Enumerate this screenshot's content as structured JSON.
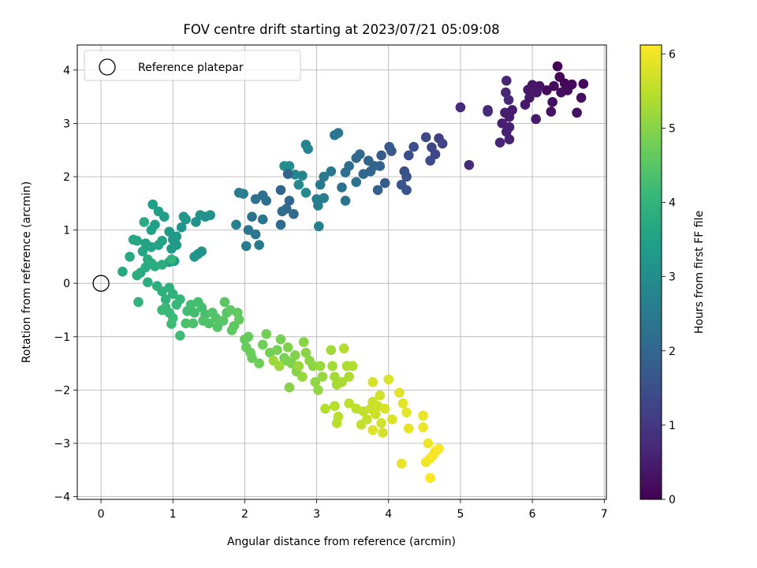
{
  "chart_data": {
    "type": "scatter",
    "title": "FOV centre drift starting at 2023/07/21 05:09:08",
    "xlabel": "Angular distance from reference (arcmin)",
    "ylabel": "Rotation from reference (arcmin)",
    "xlim": [
      -0.33,
      7.03
    ],
    "ylim": [
      -4.05,
      4.47
    ],
    "xticks": [
      0,
      1,
      2,
      3,
      4,
      5,
      6,
      7
    ],
    "yticks": [
      -4,
      -3,
      -2,
      -1,
      0,
      1,
      2,
      3,
      4
    ],
    "grid": true,
    "legend": {
      "placement": "top-left",
      "entries": [
        "Reference platepar"
      ]
    },
    "reference_point": {
      "x": 0,
      "y": 0
    },
    "colorbar": {
      "label": "Hours from first FF file",
      "range": [
        0,
        6.12
      ],
      "ticks": [
        0,
        1,
        2,
        3,
        4,
        5,
        6
      ],
      "colormap": "viridis"
    },
    "points": [
      {
        "x": 6.35,
        "y": 4.07,
        "h": 0.03
      },
      {
        "x": 6.38,
        "y": 3.87,
        "h": 0.06
      },
      {
        "x": 6.45,
        "y": 3.75,
        "h": 0.08
      },
      {
        "x": 6.71,
        "y": 3.74,
        "h": 0.1
      },
      {
        "x": 6.55,
        "y": 3.73,
        "h": 0.12
      },
      {
        "x": 6.3,
        "y": 3.7,
        "h": 0.15
      },
      {
        "x": 6.2,
        "y": 3.62,
        "h": 0.17
      },
      {
        "x": 6.49,
        "y": 3.62,
        "h": 0.19
      },
      {
        "x": 6.4,
        "y": 3.58,
        "h": 0.21
      },
      {
        "x": 6.68,
        "y": 3.48,
        "h": 0.23
      },
      {
        "x": 6.28,
        "y": 3.4,
        "h": 0.25
      },
      {
        "x": 6.62,
        "y": 3.2,
        "h": 0.27
      },
      {
        "x": 6.26,
        "y": 3.22,
        "h": 0.29
      },
      {
        "x": 6.1,
        "y": 3.7,
        "h": 0.32
      },
      {
        "x": 6.0,
        "y": 3.72,
        "h": 0.34
      },
      {
        "x": 5.94,
        "y": 3.63,
        "h": 0.36
      },
      {
        "x": 6.06,
        "y": 3.58,
        "h": 0.38
      },
      {
        "x": 5.96,
        "y": 3.48,
        "h": 0.4
      },
      {
        "x": 5.9,
        "y": 3.35,
        "h": 0.42
      },
      {
        "x": 6.05,
        "y": 3.08,
        "h": 0.44
      },
      {
        "x": 5.72,
        "y": 3.25,
        "h": 0.47
      },
      {
        "x": 5.68,
        "y": 3.12,
        "h": 0.49
      },
      {
        "x": 5.62,
        "y": 3.2,
        "h": 0.51
      },
      {
        "x": 5.58,
        "y": 3.0,
        "h": 0.53
      },
      {
        "x": 5.68,
        "y": 2.93,
        "h": 0.55
      },
      {
        "x": 5.64,
        "y": 2.84,
        "h": 0.57
      },
      {
        "x": 5.68,
        "y": 2.7,
        "h": 0.59
      },
      {
        "x": 5.55,
        "y": 2.64,
        "h": 0.62
      },
      {
        "x": 5.64,
        "y": 3.8,
        "h": 0.64
      },
      {
        "x": 5.63,
        "y": 3.58,
        "h": 0.66
      },
      {
        "x": 5.67,
        "y": 3.44,
        "h": 0.68
      },
      {
        "x": 5.38,
        "y": 3.25,
        "h": 0.7
      },
      {
        "x": 5.38,
        "y": 3.22,
        "h": 0.72
      },
      {
        "x": 5.0,
        "y": 3.3,
        "h": 0.75
      },
      {
        "x": 5.12,
        "y": 2.22,
        "h": 0.77
      },
      {
        "x": 4.7,
        "y": 2.72,
        "h": 1.2
      },
      {
        "x": 4.75,
        "y": 2.62,
        "h": 1.24
      },
      {
        "x": 4.6,
        "y": 2.55,
        "h": 1.28
      },
      {
        "x": 4.65,
        "y": 2.42,
        "h": 1.32
      },
      {
        "x": 4.52,
        "y": 2.74,
        "h": 1.36
      },
      {
        "x": 4.58,
        "y": 2.3,
        "h": 1.4
      },
      {
        "x": 4.35,
        "y": 2.56,
        "h": 1.44
      },
      {
        "x": 4.28,
        "y": 2.4,
        "h": 1.48
      },
      {
        "x": 4.22,
        "y": 2.1,
        "h": 1.52
      },
      {
        "x": 4.25,
        "y": 2.0,
        "h": 1.56
      },
      {
        "x": 4.25,
        "y": 1.75,
        "h": 1.6
      },
      {
        "x": 4.18,
        "y": 1.85,
        "h": 1.64
      },
      {
        "x": 4.04,
        "y": 2.48,
        "h": 1.68
      },
      {
        "x": 4.01,
        "y": 2.56,
        "h": 1.72
      },
      {
        "x": 3.9,
        "y": 2.4,
        "h": 1.76
      },
      {
        "x": 3.95,
        "y": 1.88,
        "h": 1.8
      },
      {
        "x": 3.85,
        "y": 1.75,
        "h": 1.84
      },
      {
        "x": 3.88,
        "y": 2.2,
        "h": 1.88
      },
      {
        "x": 3.8,
        "y": 2.2,
        "h": 1.92
      },
      {
        "x": 3.72,
        "y": 2.3,
        "h": 1.96
      },
      {
        "x": 3.75,
        "y": 2.1,
        "h": 2.0
      },
      {
        "x": 3.65,
        "y": 2.05,
        "h": 2.04
      },
      {
        "x": 3.6,
        "y": 2.42,
        "h": 2.08
      },
      {
        "x": 3.55,
        "y": 2.35,
        "h": 2.12
      },
      {
        "x": 3.45,
        "y": 2.2,
        "h": 2.16
      },
      {
        "x": 3.4,
        "y": 2.08,
        "h": 2.2
      },
      {
        "x": 3.55,
        "y": 1.9,
        "h": 2.24
      },
      {
        "x": 3.35,
        "y": 1.8,
        "h": 2.28
      },
      {
        "x": 3.4,
        "y": 1.55,
        "h": 2.32
      },
      {
        "x": 3.25,
        "y": 2.78,
        "h": 2.36
      },
      {
        "x": 3.3,
        "y": 2.82,
        "h": 2.4
      },
      {
        "x": 3.2,
        "y": 2.1,
        "h": 2.44
      },
      {
        "x": 3.1,
        "y": 2.0,
        "h": 2.48
      },
      {
        "x": 3.05,
        "y": 1.85,
        "h": 2.52
      },
      {
        "x": 3.1,
        "y": 1.6,
        "h": 2.56
      },
      {
        "x": 3.02,
        "y": 1.46,
        "h": 2.6
      },
      {
        "x": 3.0,
        "y": 1.58,
        "h": 2.64
      },
      {
        "x": 3.03,
        "y": 1.07,
        "h": 2.68
      },
      {
        "x": 2.85,
        "y": 2.6,
        "h": 2.72
      },
      {
        "x": 2.88,
        "y": 2.52,
        "h": 2.76
      },
      {
        "x": 2.8,
        "y": 2.02,
        "h": 2.8
      },
      {
        "x": 2.7,
        "y": 2.04,
        "h": 2.84
      },
      {
        "x": 2.75,
        "y": 1.85,
        "h": 2.88
      },
      {
        "x": 2.85,
        "y": 1.7,
        "h": 2.92
      },
      {
        "x": 2.62,
        "y": 2.2,
        "h": 2.96
      },
      {
        "x": 2.55,
        "y": 2.2,
        "h": 3.0
      },
      {
        "x": 2.6,
        "y": 2.05,
        "h": 1.95
      },
      {
        "x": 2.5,
        "y": 1.75,
        "h": 1.98
      },
      {
        "x": 2.62,
        "y": 1.55,
        "h": 2.02
      },
      {
        "x": 2.58,
        "y": 1.4,
        "h": 2.06
      },
      {
        "x": 2.68,
        "y": 1.3,
        "h": 2.1
      },
      {
        "x": 2.52,
        "y": 1.35,
        "h": 2.14
      },
      {
        "x": 2.5,
        "y": 1.1,
        "h": 2.18
      },
      {
        "x": 2.25,
        "y": 1.65,
        "h": 2.22
      },
      {
        "x": 2.3,
        "y": 1.55,
        "h": 2.26
      },
      {
        "x": 2.15,
        "y": 1.58,
        "h": 2.3
      },
      {
        "x": 2.1,
        "y": 1.25,
        "h": 2.34
      },
      {
        "x": 2.25,
        "y": 1.2,
        "h": 2.38
      },
      {
        "x": 2.05,
        "y": 1.0,
        "h": 2.42
      },
      {
        "x": 2.15,
        "y": 0.92,
        "h": 2.46
      },
      {
        "x": 2.2,
        "y": 0.72,
        "h": 2.5
      },
      {
        "x": 2.02,
        "y": 0.7,
        "h": 2.54
      },
      {
        "x": 1.98,
        "y": 1.68,
        "h": 2.58
      },
      {
        "x": 1.92,
        "y": 1.7,
        "h": 2.62
      },
      {
        "x": 1.88,
        "y": 1.1,
        "h": 2.66
      },
      {
        "x": 1.52,
        "y": 1.28,
        "h": 3.05
      },
      {
        "x": 1.45,
        "y": 1.25,
        "h": 3.08
      },
      {
        "x": 1.38,
        "y": 1.28,
        "h": 3.1
      },
      {
        "x": 1.32,
        "y": 1.15,
        "h": 3.12
      },
      {
        "x": 1.4,
        "y": 0.6,
        "h": 3.14
      },
      {
        "x": 1.35,
        "y": 0.55,
        "h": 3.16
      },
      {
        "x": 1.3,
        "y": 0.5,
        "h": 3.18
      },
      {
        "x": 1.18,
        "y": 1.2,
        "h": 3.2
      },
      {
        "x": 1.15,
        "y": 1.25,
        "h": 3.22
      },
      {
        "x": 1.12,
        "y": 1.05,
        "h": 3.24
      },
      {
        "x": 1.05,
        "y": 0.88,
        "h": 3.26
      },
      {
        "x": 1.0,
        "y": 0.82,
        "h": 3.28
      },
      {
        "x": 0.95,
        "y": 0.97,
        "h": 3.3
      },
      {
        "x": 1.05,
        "y": 0.72,
        "h": 3.32
      },
      {
        "x": 0.98,
        "y": 0.65,
        "h": 3.34
      },
      {
        "x": 1.02,
        "y": 0.42,
        "h": 3.36
      },
      {
        "x": 0.95,
        "y": 0.4,
        "h": 3.38
      },
      {
        "x": 0.88,
        "y": 1.25,
        "h": 3.4
      },
      {
        "x": 0.8,
        "y": 1.35,
        "h": 3.42
      },
      {
        "x": 0.72,
        "y": 1.48,
        "h": 3.44
      },
      {
        "x": 0.75,
        "y": 1.1,
        "h": 3.46
      },
      {
        "x": 0.7,
        "y": 1.0,
        "h": 3.48
      },
      {
        "x": 0.85,
        "y": 0.8,
        "h": 3.5
      },
      {
        "x": 0.8,
        "y": 0.72,
        "h": 3.52
      },
      {
        "x": 0.7,
        "y": 0.68,
        "h": 3.54
      },
      {
        "x": 0.62,
        "y": 0.75,
        "h": 3.56
      },
      {
        "x": 0.58,
        "y": 0.6,
        "h": 3.58
      },
      {
        "x": 0.5,
        "y": 0.8,
        "h": 3.6
      },
      {
        "x": 0.45,
        "y": 0.82,
        "h": 3.62
      },
      {
        "x": 0.4,
        "y": 0.5,
        "h": 3.64
      },
      {
        "x": 0.3,
        "y": 0.22,
        "h": 3.66
      },
      {
        "x": 0.55,
        "y": 0.2,
        "h": 3.68
      },
      {
        "x": 0.6,
        "y": 1.15,
        "h": 3.7
      },
      {
        "x": 0.65,
        "y": 0.45,
        "h": 3.72
      },
      {
        "x": 0.7,
        "y": 0.38,
        "h": 3.74
      },
      {
        "x": 0.62,
        "y": 0.3,
        "h": 3.76
      },
      {
        "x": 0.75,
        "y": 0.32,
        "h": 3.78
      },
      {
        "x": 0.5,
        "y": 0.15,
        "h": 3.8
      },
      {
        "x": 0.85,
        "y": 0.35,
        "h": 3.82
      },
      {
        "x": 0.65,
        "y": 0.02,
        "h": 3.84
      },
      {
        "x": 0.78,
        "y": -0.05,
        "h": 3.86
      },
      {
        "x": 0.95,
        "y": -0.08,
        "h": 3.88
      },
      {
        "x": 0.85,
        "y": -0.15,
        "h": 3.9
      },
      {
        "x": 1.0,
        "y": -0.2,
        "h": 3.92
      },
      {
        "x": 0.9,
        "y": -0.3,
        "h": 3.94
      },
      {
        "x": 0.98,
        "y": 0.45,
        "h": 3.96
      },
      {
        "x": 0.52,
        "y": -0.35,
        "h": 4.0
      },
      {
        "x": 1.1,
        "y": -0.3,
        "h": 4.05
      },
      {
        "x": 1.05,
        "y": -0.4,
        "h": 4.08
      },
      {
        "x": 0.95,
        "y": -0.55,
        "h": 4.1
      },
      {
        "x": 0.9,
        "y": -0.45,
        "h": 4.12
      },
      {
        "x": 0.85,
        "y": -0.5,
        "h": 4.14
      },
      {
        "x": 1.0,
        "y": -0.65,
        "h": 4.16
      },
      {
        "x": 0.98,
        "y": -0.76,
        "h": 4.18
      },
      {
        "x": 1.1,
        "y": -0.98,
        "h": 4.2
      },
      {
        "x": 1.2,
        "y": -0.52,
        "h": 4.22
      },
      {
        "x": 1.25,
        "y": -0.4,
        "h": 4.24
      },
      {
        "x": 1.3,
        "y": -0.55,
        "h": 4.26
      },
      {
        "x": 1.35,
        "y": -0.35,
        "h": 4.28
      },
      {
        "x": 1.4,
        "y": -0.45,
        "h": 4.3
      },
      {
        "x": 1.45,
        "y": -0.58,
        "h": 4.32
      },
      {
        "x": 1.28,
        "y": -0.75,
        "h": 4.34
      },
      {
        "x": 1.18,
        "y": -0.75,
        "h": 4.36
      },
      {
        "x": 1.42,
        "y": -0.7,
        "h": 4.38
      },
      {
        "x": 1.5,
        "y": -0.75,
        "h": 4.4
      },
      {
        "x": 1.55,
        "y": -0.55,
        "h": 4.42
      },
      {
        "x": 1.6,
        "y": -0.65,
        "h": 4.44
      },
      {
        "x": 1.62,
        "y": -0.82,
        "h": 4.46
      },
      {
        "x": 1.7,
        "y": -0.7,
        "h": 4.48
      },
      {
        "x": 1.75,
        "y": -0.55,
        "h": 4.5
      },
      {
        "x": 1.72,
        "y": -0.35,
        "h": 4.52
      },
      {
        "x": 1.8,
        "y": -0.5,
        "h": 4.54
      },
      {
        "x": 1.85,
        "y": -0.8,
        "h": 4.56
      },
      {
        "x": 1.82,
        "y": -0.88,
        "h": 4.58
      },
      {
        "x": 1.9,
        "y": -0.55,
        "h": 4.6
      },
      {
        "x": 1.92,
        "y": -0.68,
        "h": 4.62
      },
      {
        "x": 2.0,
        "y": -1.05,
        "h": 4.65
      },
      {
        "x": 2.05,
        "y": -1.0,
        "h": 4.67
      },
      {
        "x": 2.02,
        "y": -1.2,
        "h": 4.69
      },
      {
        "x": 2.08,
        "y": -1.3,
        "h": 4.71
      },
      {
        "x": 2.1,
        "y": -1.4,
        "h": 4.73
      },
      {
        "x": 2.2,
        "y": -1.5,
        "h": 4.75
      },
      {
        "x": 2.25,
        "y": -1.15,
        "h": 4.77
      },
      {
        "x": 2.3,
        "y": -0.95,
        "h": 4.79
      },
      {
        "x": 2.35,
        "y": -1.3,
        "h": 4.81
      },
      {
        "x": 2.45,
        "y": -1.25,
        "h": 4.83
      },
      {
        "x": 2.5,
        "y": -1.05,
        "h": 4.85
      },
      {
        "x": 2.55,
        "y": -1.4,
        "h": 4.87
      },
      {
        "x": 2.58,
        "y": -1.45,
        "h": 4.89
      },
      {
        "x": 2.6,
        "y": -1.2,
        "h": 4.91
      },
      {
        "x": 2.65,
        "y": -1.5,
        "h": 4.93
      },
      {
        "x": 2.7,
        "y": -1.35,
        "h": 4.95
      },
      {
        "x": 2.72,
        "y": -1.65,
        "h": 4.97
      },
      {
        "x": 2.62,
        "y": -1.95,
        "h": 4.99
      },
      {
        "x": 2.82,
        "y": -1.1,
        "h": 5.01
      },
      {
        "x": 2.85,
        "y": -1.3,
        "h": 5.03
      },
      {
        "x": 2.9,
        "y": -1.45,
        "h": 5.05
      },
      {
        "x": 2.95,
        "y": -1.55,
        "h": 5.07
      },
      {
        "x": 2.98,
        "y": -1.85,
        "h": 5.09
      },
      {
        "x": 3.02,
        "y": -2.0,
        "h": 5.11
      },
      {
        "x": 3.08,
        "y": -1.75,
        "h": 5.13
      },
      {
        "x": 2.8,
        "y": -1.75,
        "h": 5.15
      },
      {
        "x": 2.75,
        "y": -1.55,
        "h": 5.17
      },
      {
        "x": 3.05,
        "y": -1.55,
        "h": 5.19
      },
      {
        "x": 2.4,
        "y": -1.45,
        "h": 5.21
      },
      {
        "x": 2.48,
        "y": -1.55,
        "h": 5.23
      },
      {
        "x": 3.2,
        "y": -1.25,
        "h": 5.25
      },
      {
        "x": 3.22,
        "y": -1.55,
        "h": 5.27
      },
      {
        "x": 3.25,
        "y": -1.75,
        "h": 5.29
      },
      {
        "x": 3.28,
        "y": -1.9,
        "h": 5.31
      },
      {
        "x": 3.35,
        "y": -1.85,
        "h": 5.33
      },
      {
        "x": 3.42,
        "y": -1.55,
        "h": 5.35
      },
      {
        "x": 3.45,
        "y": -1.75,
        "h": 5.37
      },
      {
        "x": 3.5,
        "y": -1.55,
        "h": 5.39
      },
      {
        "x": 3.38,
        "y": -1.22,
        "h": 5.41
      },
      {
        "x": 3.12,
        "y": -2.35,
        "h": 5.43
      },
      {
        "x": 3.25,
        "y": -2.3,
        "h": 5.45
      },
      {
        "x": 3.3,
        "y": -2.5,
        "h": 5.47
      },
      {
        "x": 3.28,
        "y": -2.62,
        "h": 5.49
      },
      {
        "x": 3.45,
        "y": -2.25,
        "h": 5.51
      },
      {
        "x": 3.55,
        "y": -2.35,
        "h": 5.53
      },
      {
        "x": 3.65,
        "y": -2.4,
        "h": 5.55
      },
      {
        "x": 3.62,
        "y": -2.65,
        "h": 5.57
      },
      {
        "x": 3.7,
        "y": -2.55,
        "h": 5.59
      },
      {
        "x": 3.75,
        "y": -2.35,
        "h": 5.61
      },
      {
        "x": 3.78,
        "y": -2.22,
        "h": 5.63
      },
      {
        "x": 3.82,
        "y": -2.45,
        "h": 5.65
      },
      {
        "x": 3.85,
        "y": -2.3,
        "h": 5.67
      },
      {
        "x": 3.88,
        "y": -2.1,
        "h": 5.69
      },
      {
        "x": 3.9,
        "y": -2.62,
        "h": 5.71
      },
      {
        "x": 3.92,
        "y": -2.8,
        "h": 5.73
      },
      {
        "x": 3.78,
        "y": -1.85,
        "h": 5.75
      },
      {
        "x": 3.95,
        "y": -2.35,
        "h": 5.77
      },
      {
        "x": 4.0,
        "y": -1.8,
        "h": 5.79
      },
      {
        "x": 4.05,
        "y": -2.55,
        "h": 5.81
      },
      {
        "x": 3.78,
        "y": -2.75,
        "h": 5.83
      },
      {
        "x": 4.15,
        "y": -2.05,
        "h": 5.85
      },
      {
        "x": 4.2,
        "y": -2.25,
        "h": 5.87
      },
      {
        "x": 4.25,
        "y": -2.42,
        "h": 5.89
      },
      {
        "x": 4.28,
        "y": -2.72,
        "h": 5.91
      },
      {
        "x": 4.18,
        "y": -3.38,
        "h": 5.93
      },
      {
        "x": 4.48,
        "y": -2.48,
        "h": 5.95
      },
      {
        "x": 4.48,
        "y": -2.7,
        "h": 5.97
      },
      {
        "x": 4.55,
        "y": -3.0,
        "h": 5.99
      },
      {
        "x": 4.52,
        "y": -3.35,
        "h": 6.01
      },
      {
        "x": 4.58,
        "y": -3.28,
        "h": 6.03
      },
      {
        "x": 4.62,
        "y": -3.22,
        "h": 6.05
      },
      {
        "x": 4.65,
        "y": -3.15,
        "h": 6.07
      },
      {
        "x": 4.7,
        "y": -3.1,
        "h": 6.09
      },
      {
        "x": 4.58,
        "y": -3.65,
        "h": 6.11
      }
    ]
  }
}
